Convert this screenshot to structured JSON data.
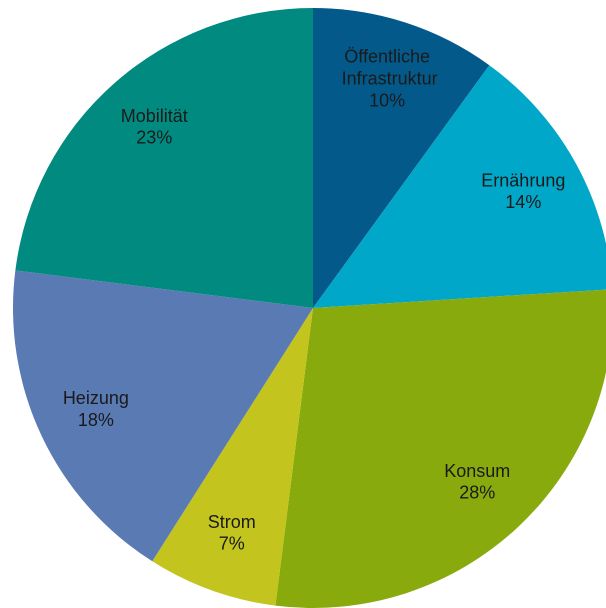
{
  "chart_data": {
    "type": "pie",
    "categories": [
      "Öffentliche Infrastruktur",
      "Ernährung",
      "Konsum",
      "Strom",
      "Heizung",
      "Mobilität"
    ],
    "values": [
      10,
      14,
      28,
      7,
      18,
      23
    ],
    "value_labels": [
      "10%",
      "14%",
      "28%",
      "7%",
      "18%",
      "23%"
    ],
    "colors": [
      "#035a8a",
      "#00a7c9",
      "#89aa0c",
      "#c3c41e",
      "#5a7ab4",
      "#008a80"
    ]
  }
}
